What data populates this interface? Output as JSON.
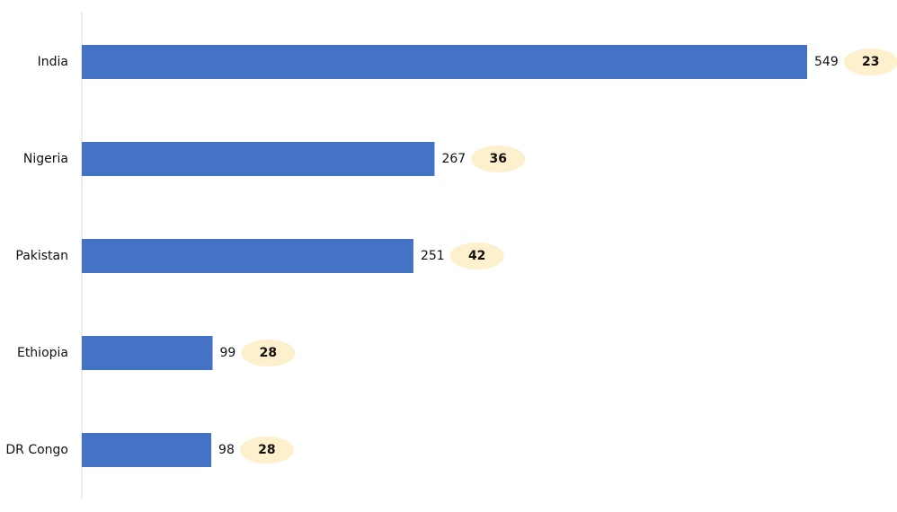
{
  "chart_data": {
    "type": "bar",
    "orientation": "horizontal",
    "categories": [
      "India",
      "Nigeria",
      "Pakistan",
      "Ethiopia",
      "DR Congo"
    ],
    "series": [
      {
        "color": "#4472c4",
        "values": [
          549,
          267,
          251,
          99,
          98
        ]
      },
      {
        "color": "#fdf0cc",
        "values": [
          23,
          36,
          42,
          28,
          28
        ]
      }
    ]
  }
}
